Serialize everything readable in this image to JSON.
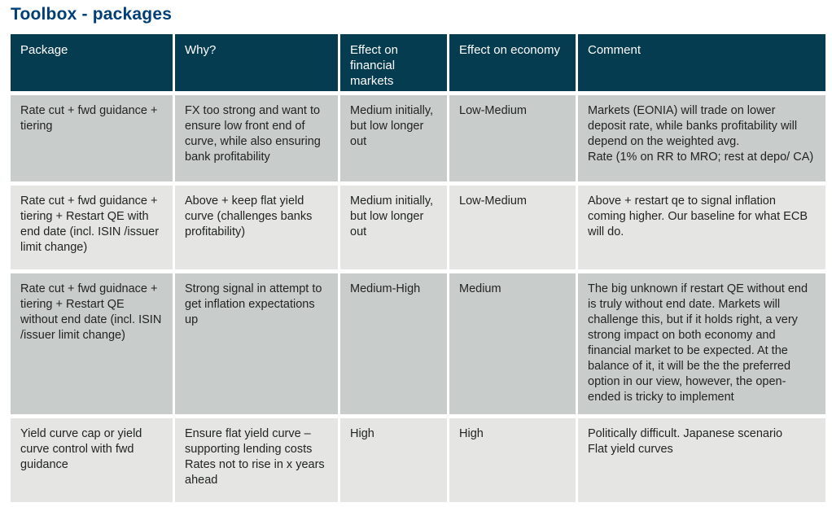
{
  "page": {
    "title": "Toolbox - packages"
  },
  "colors": {
    "title_blue": "#003F76",
    "header_bg": "#063C50",
    "header_text": "#FFFFFF",
    "row_dark_gray": "#C8CCCB",
    "row_light_gray": "#E5E6E3",
    "body_text": "#222423"
  },
  "table": {
    "head": [
      "Package",
      "Why?",
      "Effect on financial markets",
      "Effect on economy",
      "Comment"
    ],
    "rows": [
      {
        "cells": [
          "Rate cut + fwd guidance + tiering",
          "FX too strong and want to ensure low front end of curve, while also ensuring bank profitability",
          "Medium initially, but low longer out",
          "Low-Medium",
          "Markets (EONIA) will trade on lower deposit rate, while banks profitability will depend on the weighted avg.\nRate (1% on RR to MRO; rest at depo/ CA)"
        ]
      },
      {
        "cells": [
          "Rate cut + fwd guidance + tiering + Restart QE with end date (incl. ISIN /issuer limit change)",
          "Above + keep flat yield curve (challenges banks profitability)",
          "Medium initially, but low longer out",
          "Low-Medium",
          "Above + restart qe to signal inflation coming higher. Our baseline for what ECB will do."
        ]
      },
      {
        "cells": [
          "Rate cut + fwd guidnace + tiering + Restart QE without end date (incl. ISIN /issuer limit change)",
          "Strong signal in attempt to get inflation expectations up",
          "Medium-High",
          "Medium",
          "The big unknown if restart QE without end is truly without end date. Markets will challenge this, but if it holds right, a very strong impact on both economy and financial market to be expected. At the balance of it, it will be the the preferred option in our view, however, the open-ended is tricky to implement"
        ]
      },
      {
        "cells": [
          "Yield curve cap or yield curve control with fwd guidance",
          "Ensure flat yield curve – supporting lending costs\nRates not to rise in x years ahead",
          "High",
          "High",
          "Politically difficult. Japanese scenario\nFlat yield curves"
        ]
      }
    ]
  }
}
